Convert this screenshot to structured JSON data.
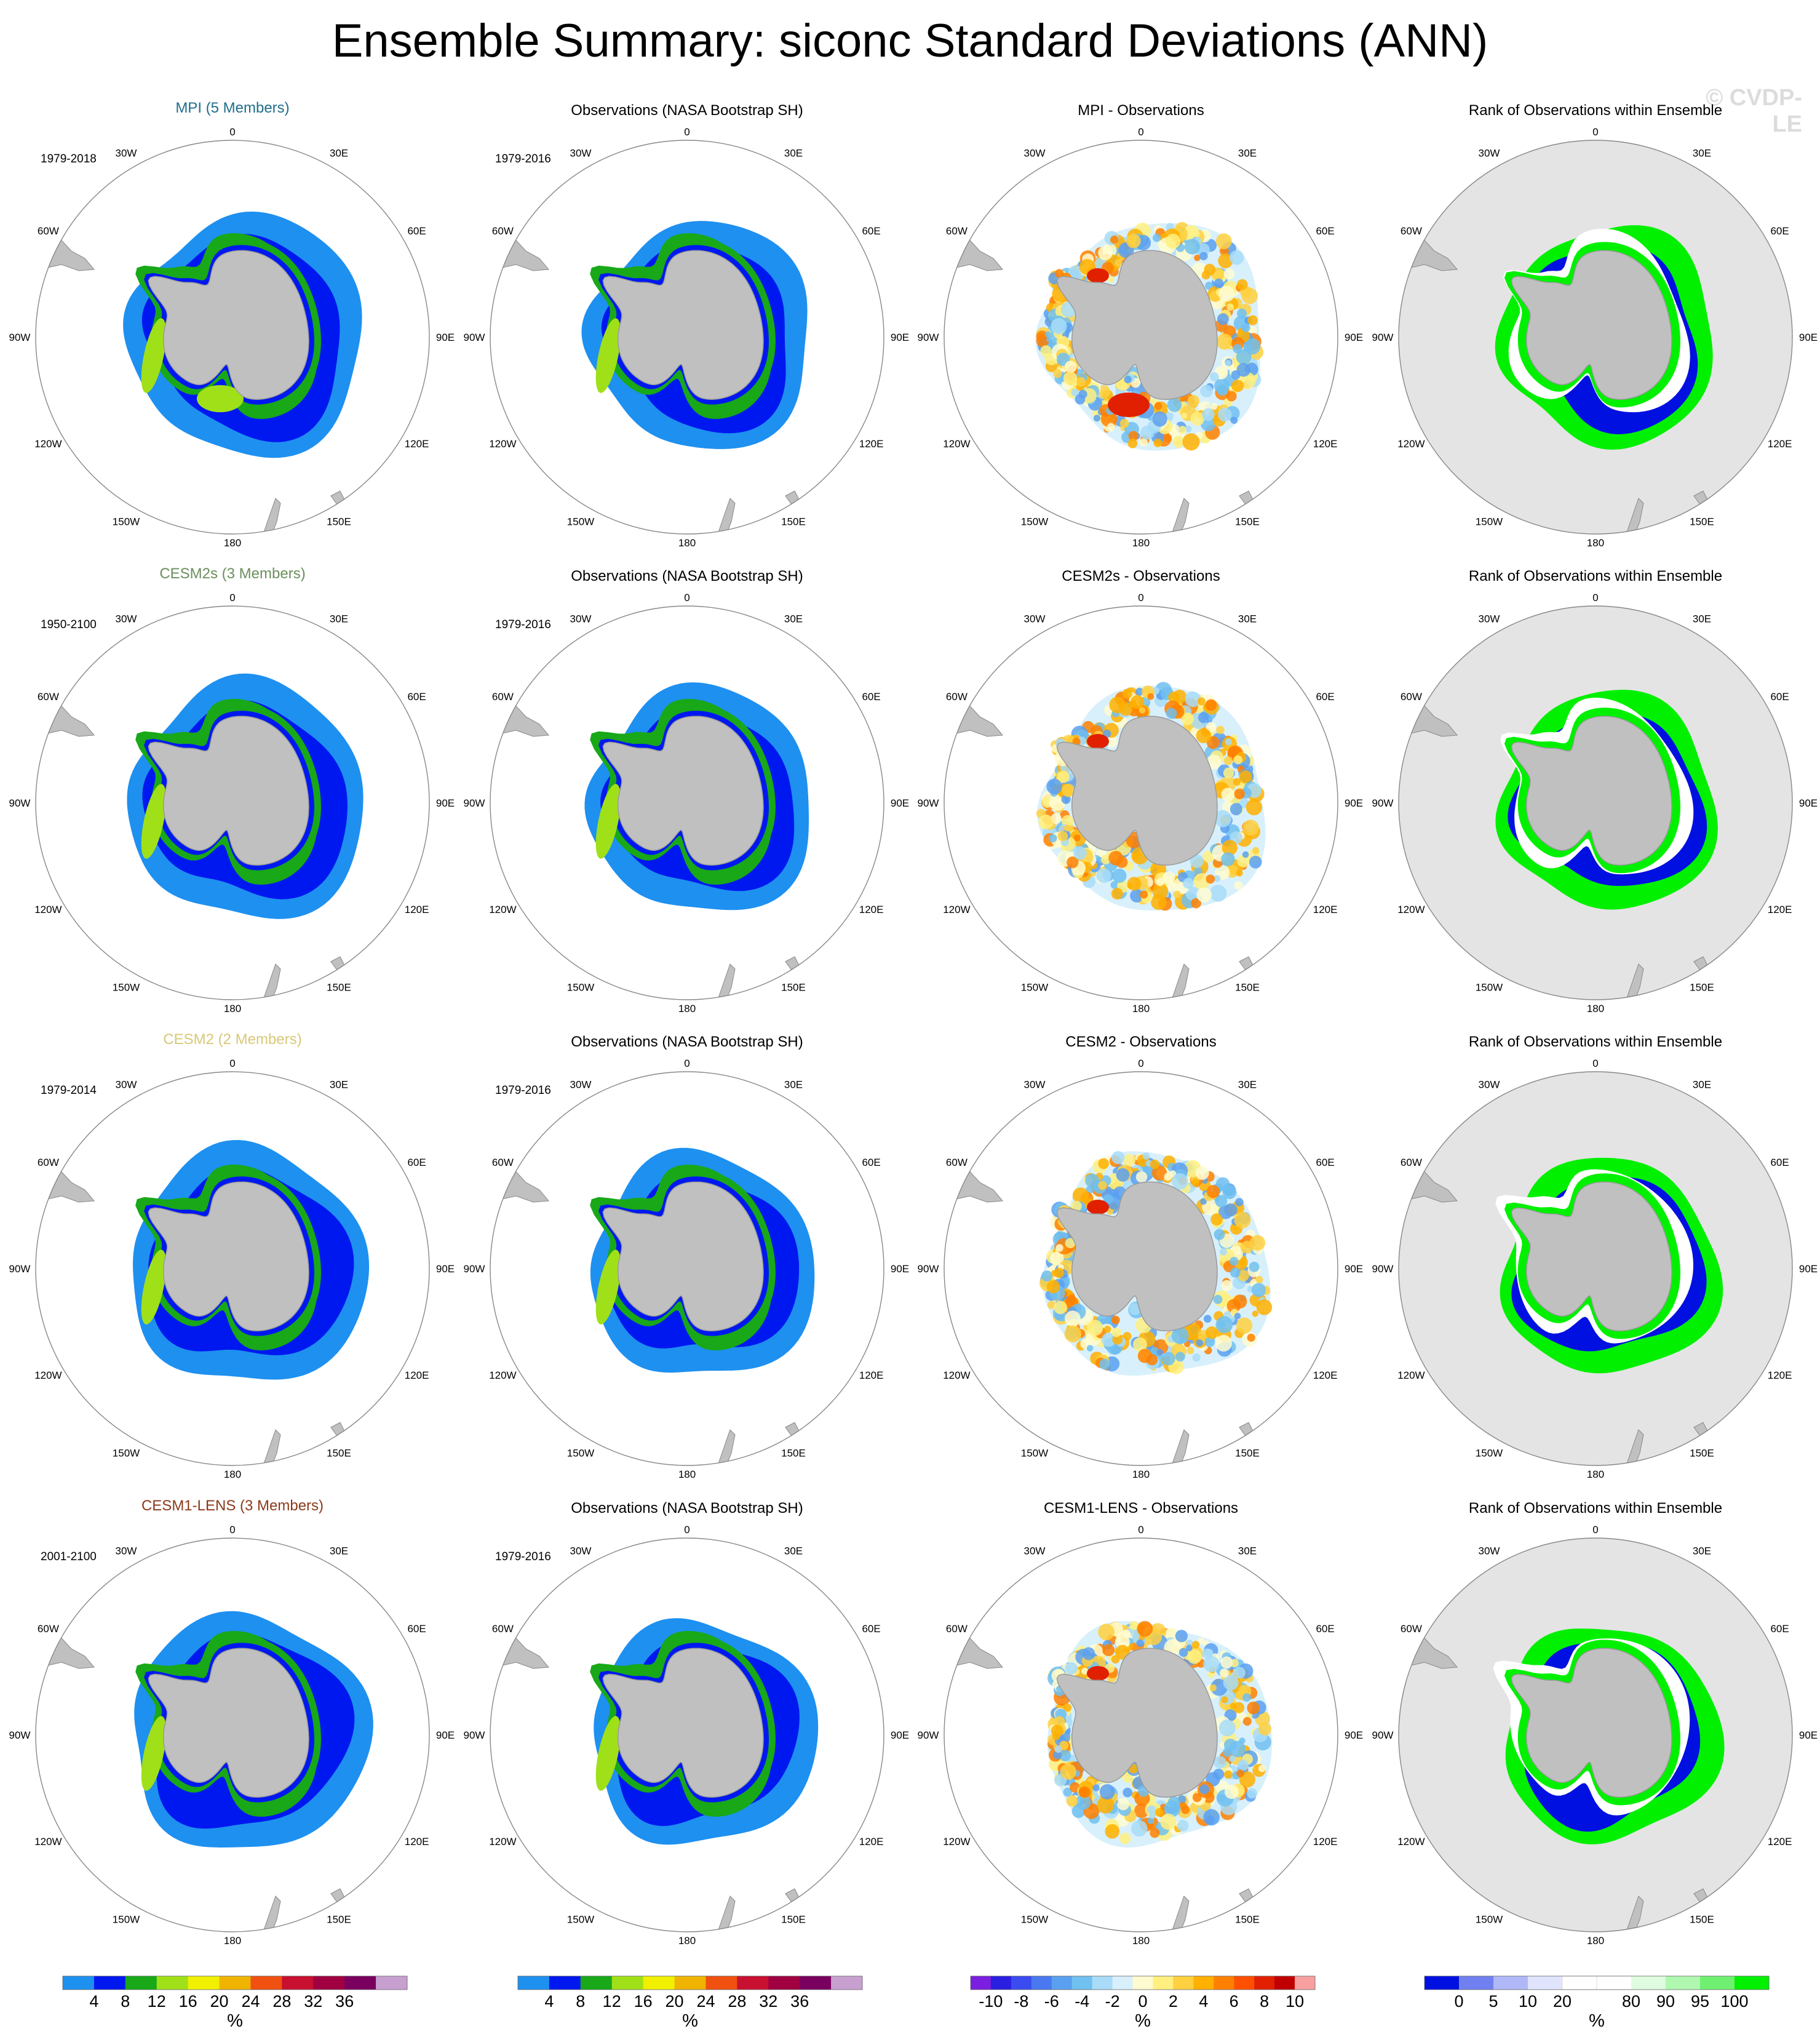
{
  "title": "Ensemble Summary: siconc Standard Deviations (ANN)",
  "copyright": "© CVDP-LE",
  "map_labels": {
    "top": "0",
    "bottom": "180",
    "left": "90W",
    "right": "90E",
    "upper_left": "30W",
    "upper_right": "30E",
    "mid_left_upper": "60W",
    "mid_right_upper": "60E",
    "mid_left_lower": "120W",
    "mid_right_lower": "120E",
    "lower_left": "150W",
    "lower_right": "150E"
  },
  "rows": [
    {
      "model": {
        "title": "MPI (5 Members)",
        "color": "#1f6e8c",
        "period": "1979-2018"
      },
      "obs": {
        "title": "Observations (NASA Bootstrap SH)",
        "period": "1979-2016"
      },
      "diff": {
        "title": "MPI - Observations"
      },
      "rank": {
        "title": "Rank of Observations within Ensemble"
      }
    },
    {
      "model": {
        "title": "CESM2s (3 Members)",
        "color": "#6b8f5e",
        "period": "1950-2100"
      },
      "obs": {
        "title": "Observations (NASA Bootstrap SH)",
        "period": "1979-2016"
      },
      "diff": {
        "title": "CESM2s - Observations"
      },
      "rank": {
        "title": "Rank of Observations within Ensemble"
      }
    },
    {
      "model": {
        "title": "CESM2 (2 Members)",
        "color": "#d8c878",
        "period": "1979-2014"
      },
      "obs": {
        "title": "Observations (NASA Bootstrap SH)",
        "period": "1979-2016"
      },
      "diff": {
        "title": "CESM2 - Observations"
      },
      "rank": {
        "title": "Rank of Observations within Ensemble"
      }
    },
    {
      "model": {
        "title": "CESM1-LENS (3 Members)",
        "color": "#8b3a1a",
        "period": "2001-2100"
      },
      "obs": {
        "title": "Observations (NASA Bootstrap SH)",
        "period": "1979-2016"
      },
      "diff": {
        "title": "CESM1-LENS - Observations"
      },
      "rank": {
        "title": "Rank of Observations within Ensemble"
      }
    }
  ],
  "colorbars": [
    {
      "unit": "%",
      "colors": [
        "#1e90f0",
        "#0018f0",
        "#18a818",
        "#a0e018",
        "#f0f000",
        "#f0b400",
        "#f05010",
        "#c81030",
        "#a00040",
        "#7a0060",
        "#c8a0d0"
      ],
      "tick_labels": [
        "4",
        "8",
        "12",
        "16",
        "20",
        "24",
        "28",
        "32",
        "36"
      ]
    },
    {
      "unit": "%",
      "colors": [
        "#1e90f0",
        "#0018f0",
        "#18a818",
        "#a0e018",
        "#f0f000",
        "#f0b400",
        "#f05010",
        "#c81030",
        "#a00040",
        "#7a0060",
        "#c8a0d0"
      ],
      "tick_labels": [
        "4",
        "8",
        "12",
        "16",
        "20",
        "24",
        "28",
        "32",
        "36"
      ]
    },
    {
      "unit": "%",
      "colors": [
        "#7a1ee0",
        "#2a1ee0",
        "#3a4cf0",
        "#4a78f0",
        "#5aa0f0",
        "#70c0f0",
        "#a8dcf8",
        "#d8f0fc",
        "#fffbd0",
        "#fff080",
        "#ffd040",
        "#ffb000",
        "#ff8000",
        "#ff5000",
        "#e02000",
        "#c00000",
        "#f8a0a0"
      ],
      "tick_labels": [
        "-10",
        "-8",
        "-6",
        "-4",
        "-2",
        "0",
        "2",
        "4",
        "6",
        "8",
        "10"
      ]
    },
    {
      "unit": "%",
      "colors": [
        "#0010e0",
        "#7080f0",
        "#b0b8f8",
        "#e0e4fc",
        "#ffffff",
        "#ffffff",
        "#e0fce0",
        "#b0f8b0",
        "#70f070",
        "#00f000"
      ],
      "tick_labels": [
        "0",
        "5",
        "10",
        "20",
        "80",
        "90",
        "95",
        "100"
      ]
    }
  ]
}
